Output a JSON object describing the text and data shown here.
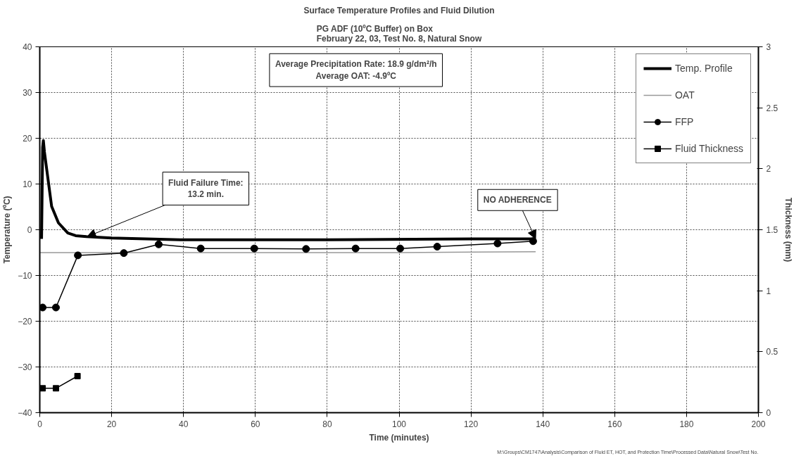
{
  "chart_data": {
    "type": "line",
    "title": "Surface Temperature Profiles and Fluid Dilution",
    "subtitle": "PG ADF (10ºC Buffer) on Box\nFebruary 22, 03, Test No. 8, Natural Snow",
    "xlabel": "Time (minutes)",
    "ylabel": "Temperature (ºC)",
    "y2label": "Thickness (mm)",
    "xlim": [
      0,
      200
    ],
    "xticks": [
      0,
      20,
      40,
      60,
      80,
      100,
      120,
      140,
      160,
      180,
      200
    ],
    "ylim": [
      -40,
      40
    ],
    "yticks": [
      -40,
      -30,
      -20,
      -10,
      0,
      10,
      20,
      30,
      40
    ],
    "y2lim": [
      0,
      3
    ],
    "y2ticks": [
      0,
      0.5,
      1,
      1.5,
      2,
      2.5,
      3
    ],
    "grid": true,
    "legend": "top right",
    "series": [
      {
        "name": "Temp. Profile",
        "color": "#000000",
        "marker": "none",
        "x": [
          0.5,
          0.8,
          1.0,
          1.3,
          2.0,
          3.3,
          5.2,
          7.8,
          10,
          13,
          20,
          40,
          80,
          120,
          138
        ],
        "values": [
          -2,
          18,
          19.5,
          17,
          12.8,
          5.1,
          1.5,
          -0.7,
          -1.3,
          -1.5,
          -1.8,
          -2.2,
          -2.2,
          -2.0,
          -2.0
        ]
      },
      {
        "name": "OAT",
        "color": "#999999",
        "marker": "none",
        "x": [
          0,
          20,
          40,
          60,
          80,
          100,
          120,
          138
        ],
        "values": [
          -5,
          -5,
          -5,
          -5,
          -5,
          -5,
          -4.9,
          -4.8
        ]
      },
      {
        "name": "FFP",
        "color": "#000000",
        "marker": "circle",
        "x": [
          0.8,
          4.5,
          10.6,
          23.4,
          33.1,
          44.8,
          59.7,
          74.1,
          87.9,
          100.3,
          110.6,
          127.4,
          137.3
        ],
        "values": [
          -17,
          -17,
          -5.6,
          -5.1,
          -3.2,
          -4.1,
          -4.1,
          -4.2,
          -4.1,
          -4.1,
          -3.7,
          -3.0,
          -2.5
        ]
      },
      {
        "name": "Fluid Thickness",
        "color": "#000000",
        "marker": "square",
        "axis": "y2",
        "x": [
          0.8,
          4.5,
          10.5
        ],
        "values": [
          0.2,
          0.2,
          0.3
        ]
      }
    ],
    "annotations": [
      {
        "text": "Fluid Failure Time:\n13.2 min.",
        "x": 13.2,
        "y": -1.5
      },
      {
        "text": "NO ADHERENCE",
        "x": 138,
        "y": -2.0
      },
      "Average Precipitation Rate: 18.9 g/dm²/h\nAverage OAT: -4.9ºC",
      "M:\\Groups\\CM1747\\Analysis\\Comparison of Fluid ET, HOT, and Protection Time\\Processed Data\\Natural Snow\\Test No."
    ]
  }
}
